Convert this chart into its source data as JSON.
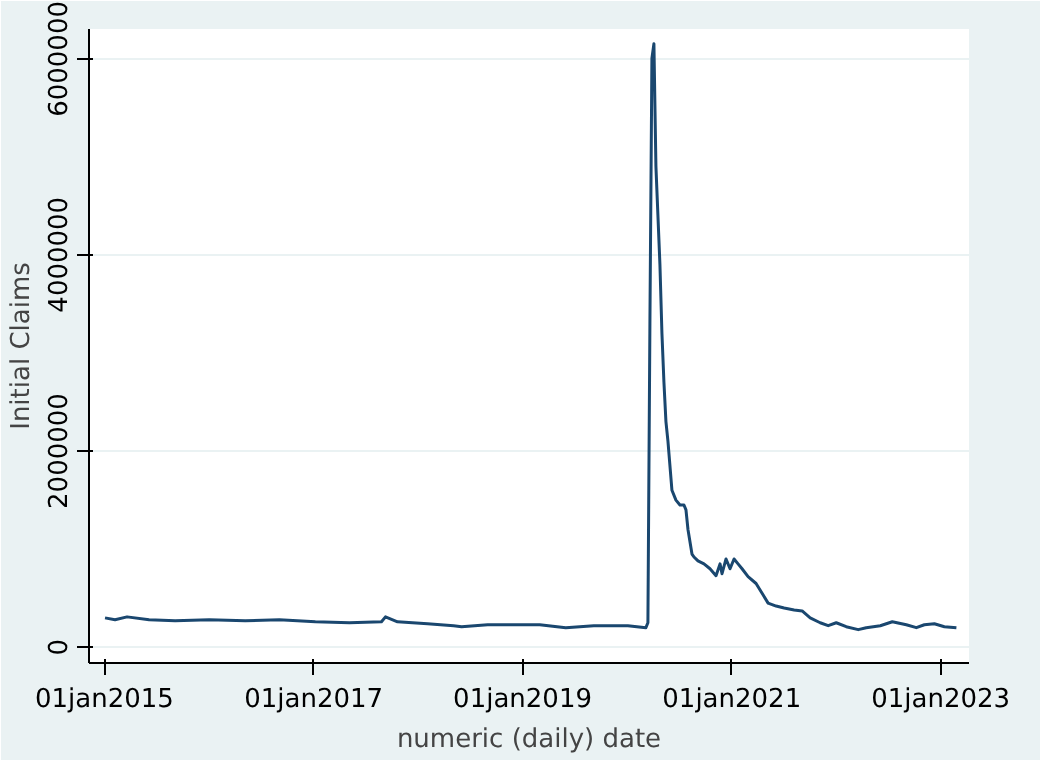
{
  "chart_data": {
    "type": "line",
    "xlabel": "numeric (daily) date",
    "ylabel": "Initial Claims",
    "xlim": [
      "2014-11-08",
      "2023-04-10"
    ],
    "ylim": [
      -160000,
      6300000
    ],
    "xticks": [
      {
        "value": "2015-01-01",
        "label": "01jan2015"
      },
      {
        "value": "2017-01-01",
        "label": "01jan2017"
      },
      {
        "value": "2019-01-01",
        "label": "01jan2019"
      },
      {
        "value": "2021-01-01",
        "label": "01jan2021"
      },
      {
        "value": "2023-01-01",
        "label": "01jan2023"
      }
    ],
    "yticks": [
      0,
      2000000,
      4000000,
      6000000
    ],
    "grid": "y",
    "marker": "none",
    "line_style": "solid",
    "series": [
      {
        "color": "#1a476f",
        "x": [
          "2015-01-03",
          "2015-02-07",
          "2015-03-21",
          "2015-06-06",
          "2015-09-05",
          "2016-01-02",
          "2016-05-07",
          "2016-09-03",
          "2017-01-07",
          "2017-05-06",
          "2017-08-26",
          "2017-09-09",
          "2017-10-21",
          "2018-02-03",
          "2018-05-05",
          "2018-06-02",
          "2018-09-01",
          "2019-01-05",
          "2019-03-02",
          "2019-06-01",
          "2019-09-07",
          "2020-01-04",
          "2020-03-07",
          "2020-03-14",
          "2020-03-21",
          "2020-03-28",
          "2020-04-04",
          "2020-04-11",
          "2020-04-18",
          "2020-04-25",
          "2020-05-02",
          "2020-05-09",
          "2020-05-16",
          "2020-05-23",
          "2020-06-06",
          "2020-06-20",
          "2020-07-04",
          "2020-07-18",
          "2020-07-25",
          "2020-08-01",
          "2020-08-15",
          "2020-08-22",
          "2020-09-05",
          "2020-09-26",
          "2020-10-17",
          "2020-11-07",
          "2020-11-21",
          "2020-11-28",
          "2020-12-12",
          "2020-12-26",
          "2021-01-09",
          "2021-01-23",
          "2021-02-06",
          "2021-02-27",
          "2021-03-27",
          "2021-04-17",
          "2021-05-08",
          "2021-06-05",
          "2021-07-03",
          "2021-08-07",
          "2021-09-04",
          "2021-10-02",
          "2021-11-06",
          "2021-12-04",
          "2022-01-01",
          "2022-02-05",
          "2022-03-19",
          "2022-04-16",
          "2022-06-04",
          "2022-07-16",
          "2022-09-03",
          "2022-10-08",
          "2022-11-05",
          "2022-12-10",
          "2023-01-14",
          "2023-02-25"
        ],
        "values": [
          300000,
          280000,
          310000,
          280000,
          270000,
          280000,
          270000,
          280000,
          260000,
          250000,
          260000,
          310000,
          260000,
          240000,
          220000,
          210000,
          230000,
          230000,
          230000,
          200000,
          220000,
          220000,
          200000,
          250000,
          3300000,
          6000000,
          6150000,
          4900000,
          4400000,
          3900000,
          3200000,
          2700000,
          2300000,
          2100000,
          1600000,
          1500000,
          1450000,
          1450000,
          1400000,
          1200000,
          950000,
          920000,
          880000,
          850000,
          800000,
          730000,
          850000,
          750000,
          900000,
          800000,
          900000,
          850000,
          800000,
          720000,
          650000,
          550000,
          450000,
          420000,
          400000,
          380000,
          370000,
          300000,
          250000,
          220000,
          250000,
          210000,
          180000,
          200000,
          220000,
          260000,
          230000,
          200000,
          230000,
          240000,
          210000,
          200000
        ]
      }
    ]
  }
}
